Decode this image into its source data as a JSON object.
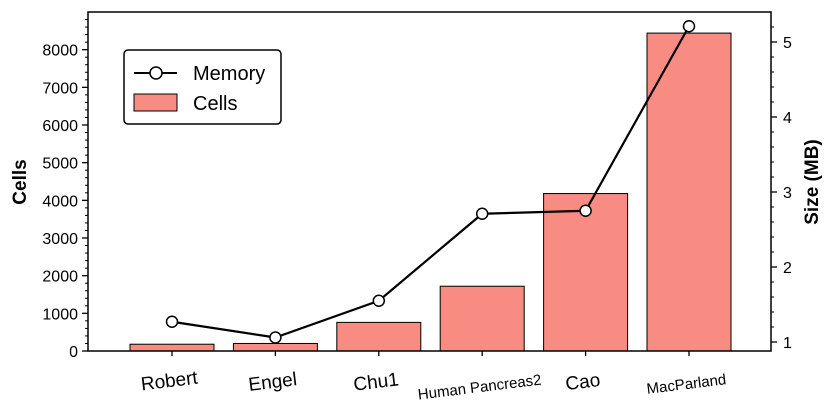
{
  "chart_data": {
    "type": "bar",
    "categories": [
      "Robert",
      "Engel",
      "Chu1",
      "Human Pancreas2",
      "Cao",
      "MacParland"
    ],
    "series": [
      {
        "name": "Cells",
        "axis": "left",
        "kind": "bar",
        "values": [
          180,
          200,
          760,
          1720,
          4180,
          8440
        ],
        "color": "#f88b82"
      },
      {
        "name": "Memory",
        "axis": "right",
        "kind": "line",
        "values": [
          1.27,
          1.06,
          1.55,
          2.71,
          2.75,
          5.21
        ],
        "color": "#000000"
      }
    ],
    "title": "",
    "xlabel": "",
    "ylabel": "Cells",
    "y2label": "Size (MB)",
    "ylim": [
      0,
      9000
    ],
    "y2lim": [
      0.88,
      5.4
    ],
    "yticks": [
      0,
      1000,
      2000,
      3000,
      4000,
      5000,
      6000,
      7000,
      8000
    ],
    "y2ticks": [
      1,
      2,
      3,
      4,
      5
    ],
    "legend": {
      "placement": "top-left",
      "entries": [
        "Memory",
        "Cells"
      ]
    },
    "grid": false
  }
}
